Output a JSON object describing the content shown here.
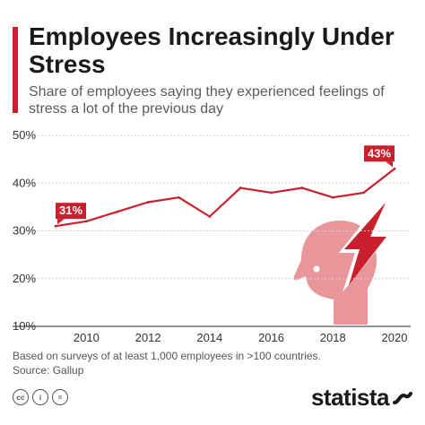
{
  "header": {
    "title": "Employees Increasingly Under Stress",
    "subtitle": "Share of employees saying they experienced feelings of stress a lot of the previous day"
  },
  "footer": {
    "note": "Based on surveys of at least 1,000 employees in >100 countries.",
    "source": "Source: Gallup",
    "brand": "statista"
  },
  "icons": [
    "creative-commons-icon",
    "attribution-icon",
    "no-derivatives-icon",
    "stressed-head-icon",
    "lightning-bolt-icon",
    "statista-logo-icon"
  ],
  "colors": {
    "accent": "#c8202c",
    "illustration": "#e9969a"
  },
  "chart_data": {
    "type": "line",
    "title": "Employees Increasingly Under Stress",
    "subtitle": "Share of employees saying they experienced feelings of stress a lot of the previous day",
    "xlabel": "",
    "ylabel": "",
    "x": [
      2009,
      2010,
      2011,
      2012,
      2013,
      2014,
      2015,
      2016,
      2017,
      2018,
      2019,
      2020
    ],
    "series": [
      {
        "values": [
          31,
          32,
          34,
          36,
          37,
          33,
          39,
          38,
          39,
          37,
          38,
          43
        ]
      }
    ],
    "x_ticks": [
      2010,
      2012,
      2014,
      2016,
      2018,
      2020
    ],
    "y_ticks": [
      10,
      20,
      30,
      40,
      50
    ],
    "y_tick_labels": [
      "10%",
      "20%",
      "30%",
      "40%",
      "50%"
    ],
    "xlim": [
      2009,
      2020
    ],
    "ylim": [
      10,
      50
    ],
    "grid": "horizontal",
    "data_labels": [
      {
        "x": 2009,
        "text": "31%"
      },
      {
        "x": 2020,
        "text": "43%"
      }
    ]
  }
}
